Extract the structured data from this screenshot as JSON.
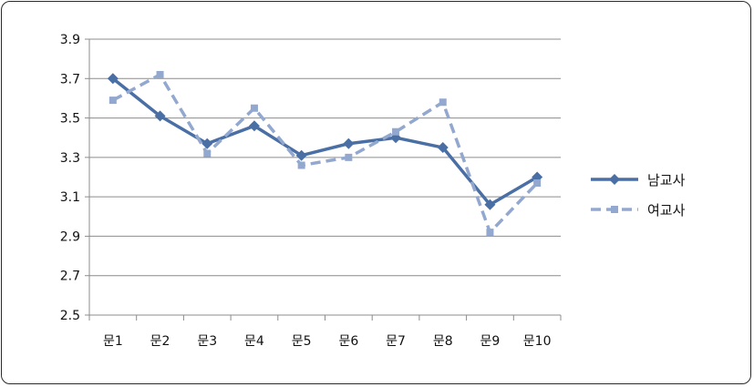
{
  "chart_data": {
    "type": "line",
    "title": "",
    "xlabel": "",
    "ylabel": "",
    "categories": [
      "문1",
      "문2",
      "문3",
      "문4",
      "문5",
      "문6",
      "문7",
      "문8",
      "문9",
      "문10"
    ],
    "ylim": [
      2.5,
      3.9
    ],
    "yticks": [
      "2.5",
      "2.7",
      "2.9",
      "3.1",
      "3.3",
      "3.5",
      "3.7",
      "3.9"
    ],
    "grid": true,
    "legend_position": "right",
    "series": [
      {
        "name": "남교사",
        "values": [
          3.7,
          3.51,
          3.37,
          3.46,
          3.31,
          3.37,
          3.4,
          3.35,
          3.06,
          3.2
        ],
        "color": "#4a6fa5",
        "style": "solid",
        "marker": "diamond"
      },
      {
        "name": "여교사",
        "values": [
          3.59,
          3.72,
          3.32,
          3.55,
          3.26,
          3.3,
          3.43,
          3.58,
          2.92,
          3.17
        ],
        "color": "#93a8cf",
        "style": "dashed",
        "marker": "square"
      }
    ]
  }
}
